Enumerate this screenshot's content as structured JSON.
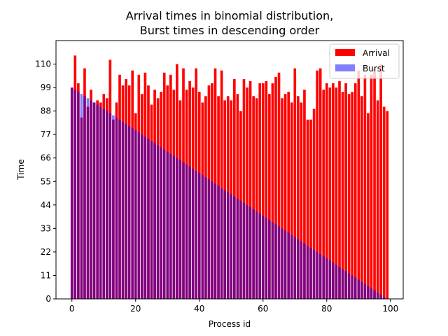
{
  "chart_data": {
    "type": "bar",
    "title": [
      "Arrival times in binomial distribution,",
      "Burst times in descending order"
    ],
    "xlabel": "Process id",
    "ylabel": "Time",
    "xlim": [
      -5,
      104
    ],
    "ylim": [
      0,
      121
    ],
    "xticks": [
      0,
      20,
      40,
      60,
      80,
      100
    ],
    "yticks": [
      0,
      11,
      22,
      33,
      44,
      55,
      66,
      77,
      88,
      99,
      110
    ],
    "grid": false,
    "legend_position": "top-right",
    "x": [
      0,
      1,
      2,
      3,
      4,
      5,
      6,
      7,
      8,
      9,
      10,
      11,
      12,
      13,
      14,
      15,
      16,
      17,
      18,
      19,
      20,
      21,
      22,
      23,
      24,
      25,
      26,
      27,
      28,
      29,
      30,
      31,
      32,
      33,
      34,
      35,
      36,
      37,
      38,
      39,
      40,
      41,
      42,
      43,
      44,
      45,
      46,
      47,
      48,
      49,
      50,
      51,
      52,
      53,
      54,
      55,
      56,
      57,
      58,
      59,
      60,
      61,
      62,
      63,
      64,
      65,
      66,
      67,
      68,
      69,
      70,
      71,
      72,
      73,
      74,
      75,
      76,
      77,
      78,
      79,
      80,
      81,
      82,
      83,
      84,
      85,
      86,
      87,
      88,
      89,
      90,
      91,
      92,
      93,
      94,
      95,
      96,
      97,
      98,
      99
    ],
    "series": [
      {
        "name": "Arrival",
        "color": "#ff0000",
        "opacity": 1,
        "values": [
          99,
          114,
          101,
          85,
          108,
          90,
          98,
          92,
          93,
          92,
          96,
          94,
          112,
          84,
          92,
          105,
          100,
          103,
          100,
          107,
          87,
          105,
          96,
          106,
          100,
          91,
          98,
          94,
          97,
          106,
          100,
          105,
          98,
          110,
          93,
          108,
          98,
          102,
          99,
          108,
          97,
          92,
          95,
          100,
          101,
          108,
          95,
          107,
          93,
          95,
          93,
          103,
          96,
          88,
          103,
          99,
          102,
          95,
          94,
          101,
          101,
          102,
          96,
          101,
          104,
          106,
          94,
          96,
          97,
          92,
          108,
          95,
          92,
          98,
          84,
          84,
          89,
          107,
          108,
          98,
          101,
          99,
          101,
          99,
          102,
          97,
          101,
          96,
          97,
          101,
          107,
          95,
          105,
          87,
          105,
          108,
          93,
          110,
          90,
          88
        ]
      },
      {
        "name": "Burst",
        "color": "#0000ff",
        "opacity": 0.5,
        "values": [
          99,
          98,
          97,
          96,
          95,
          94,
          93,
          92,
          91,
          90,
          89,
          88,
          87,
          86,
          85,
          84,
          83,
          82,
          81,
          80,
          79,
          78,
          77,
          76,
          75,
          74,
          73,
          72,
          71,
          70,
          69,
          68,
          67,
          66,
          65,
          64,
          63,
          62,
          61,
          60,
          59,
          58,
          57,
          56,
          55,
          54,
          53,
          52,
          51,
          50,
          49,
          48,
          47,
          46,
          45,
          44,
          43,
          42,
          41,
          40,
          39,
          38,
          37,
          36,
          35,
          34,
          33,
          32,
          31,
          30,
          29,
          28,
          27,
          26,
          25,
          24,
          23,
          22,
          21,
          20,
          19,
          18,
          17,
          16,
          15,
          14,
          13,
          12,
          11,
          10,
          9,
          8,
          7,
          6,
          5,
          4,
          3,
          2,
          1,
          0
        ]
      }
    ]
  }
}
